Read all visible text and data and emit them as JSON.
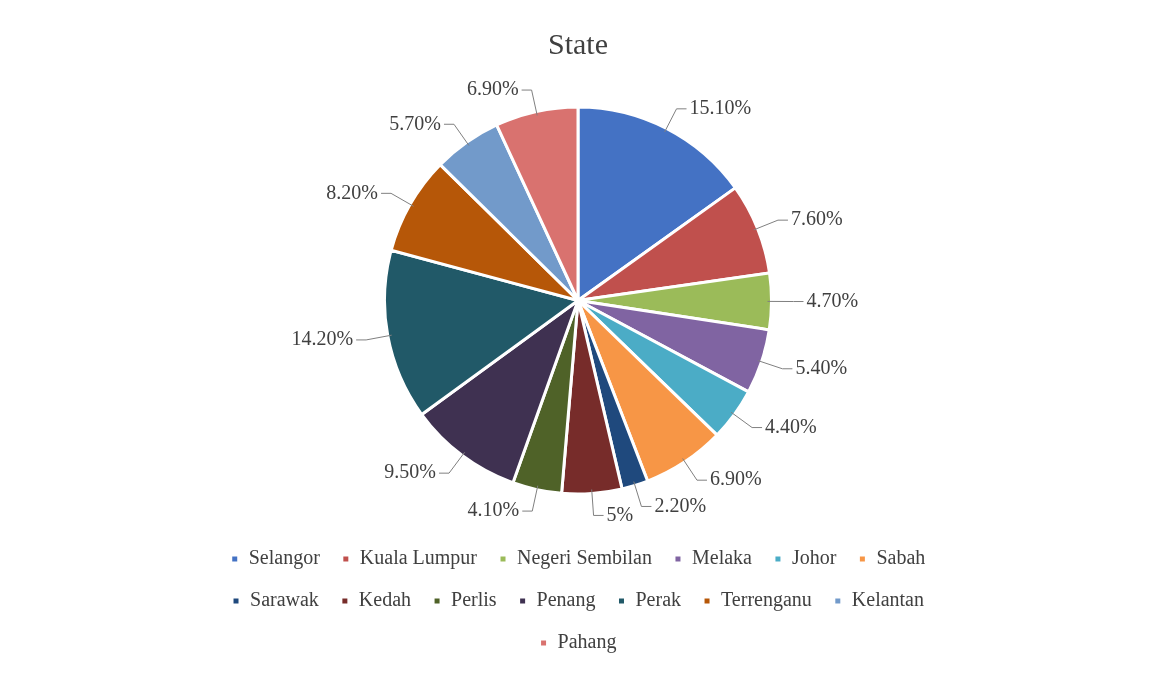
{
  "chart_data": {
    "type": "pie",
    "title": "State",
    "categories": [
      "Selangor",
      "Kuala Lumpur",
      "Negeri Sembilan",
      "Melaka",
      "Johor",
      "Sabah",
      "Sarawak",
      "Kedah",
      "Perlis",
      "Penang",
      "Perak",
      "Terrenganu",
      "Kelantan",
      "Pahang"
    ],
    "values": [
      15.1,
      7.6,
      4.7,
      5.4,
      4.4,
      6.9,
      2.2,
      5,
      4.1,
      9.5,
      14.2,
      8.2,
      5.7,
      6.9
    ],
    "value_labels": [
      "15.10%",
      "7.60%",
      "4.70%",
      "5.40%",
      "4.40%",
      "6.90%",
      "2.20%",
      "5%",
      "4.10%",
      "9.50%",
      "14.20%",
      "8.20%",
      "5.70%",
      "6.90%"
    ],
    "colors": [
      "#4472c4",
      "#c0504d",
      "#9bbb59",
      "#8064a2",
      "#4bacc6",
      "#f79646",
      "#1f497d",
      "#772c2a",
      "#4f6228",
      "#3f3151",
      "#215968",
      "#b65708",
      "#729aca",
      "#d9726f"
    ],
    "legend": "bottom"
  }
}
